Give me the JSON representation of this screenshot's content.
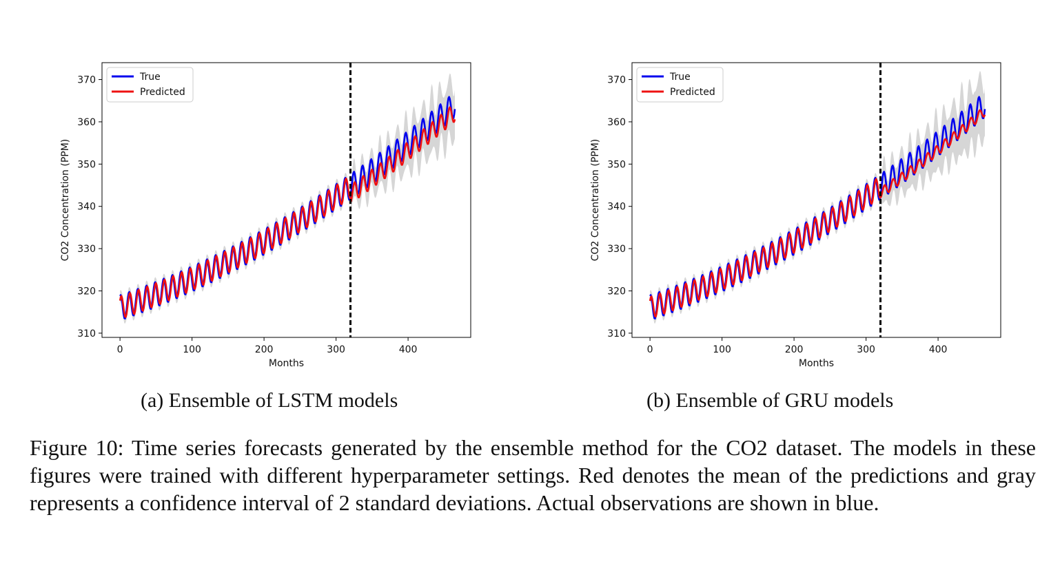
{
  "figure": {
    "caption_label": "Figure 10:",
    "caption_text": " Time series forecasts generated by the ensemble method for the CO2 dataset. The models in these figures were trained with different hyperparameter settings. Red denotes the mean of the predictions and gray represents a confidence interval of 2 standard deviations. Actual observations are shown in blue."
  },
  "colors": {
    "true": "#0000ee",
    "predicted": "#ee1111",
    "band": "#d6d6d6",
    "divider": "#000000"
  },
  "chart_data": [
    {
      "type": "line",
      "subcaption": "(a) Ensemble of LSTM models",
      "xlabel": "Months",
      "ylabel": "CO2 Concentration (PPM)",
      "xlim": [
        -25,
        487
      ],
      "ylim": [
        309,
        374
      ],
      "xticks": [
        0,
        100,
        200,
        300,
        400
      ],
      "yticks": [
        310,
        320,
        330,
        340,
        350,
        360,
        370
      ],
      "legend": {
        "position": "top-left",
        "entries": [
          "True",
          "Predicted"
        ]
      },
      "split_x": 320,
      "months": 465,
      "true_series": {
        "name": "True",
        "start": 316,
        "lin": 0.0586,
        "quad": 9.65e-05,
        "amp": 3.0,
        "phase": 1.2
      },
      "pred_series": {
        "name": "Predicted",
        "start": 316,
        "lin": 0.0586,
        "quad": 9.65e-05,
        "amp_train": 2.7,
        "amp_test": 2.2,
        "phase": 1.2,
        "lag": 1.0,
        "offset_test": -1.8
      },
      "band": {
        "train_width": 1.2,
        "test_width_start": 2.5,
        "test_width_end": 6.0
      }
    },
    {
      "type": "line",
      "subcaption": "(b) Ensemble of GRU models",
      "xlabel": "Months",
      "ylabel": "CO2 Concentration (PPM)",
      "xlim": [
        -25,
        487
      ],
      "ylim": [
        309,
        374
      ],
      "xticks": [
        0,
        100,
        200,
        300,
        400
      ],
      "yticks": [
        310,
        320,
        330,
        340,
        350,
        360,
        370
      ],
      "legend": {
        "position": "top-left",
        "entries": [
          "True",
          "Predicted"
        ]
      },
      "split_x": 320,
      "months": 465,
      "true_series": {
        "name": "True",
        "start": 316,
        "lin": 0.0586,
        "quad": 9.65e-05,
        "amp": 3.0,
        "phase": 1.2
      },
      "pred_series": {
        "name": "Predicted",
        "start": 316,
        "lin": 0.0586,
        "quad": 9.65e-05,
        "amp_train": 2.6,
        "amp_test": 1.2,
        "phase": 1.2,
        "lag": 1.0,
        "offset_test": -1.5
      },
      "band": {
        "train_width": 1.2,
        "test_width_start": 3.0,
        "test_width_end": 6.5
      }
    }
  ]
}
